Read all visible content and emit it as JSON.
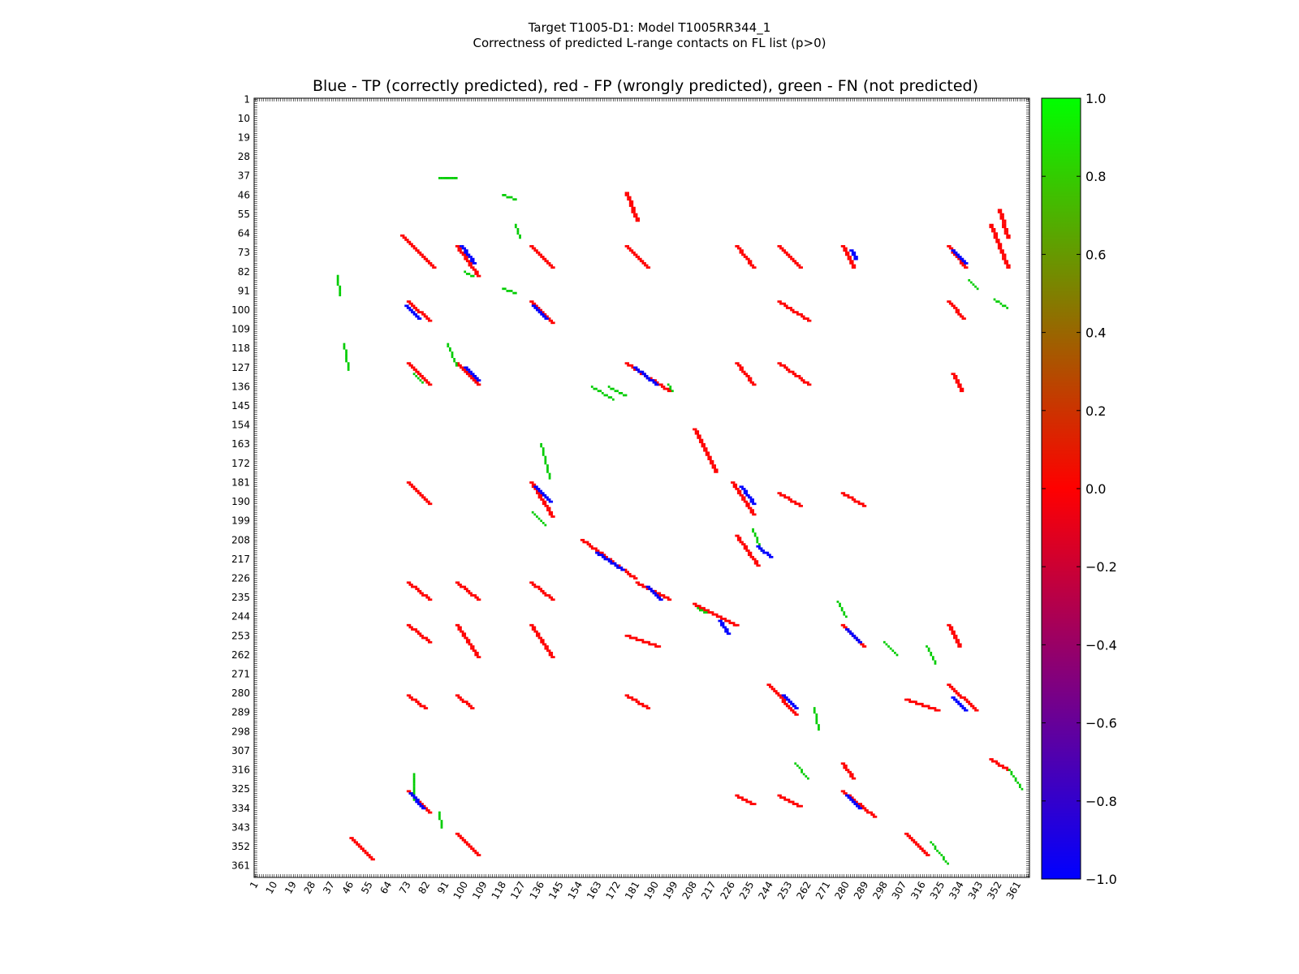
{
  "figure": {
    "suptitle_line1": "Target T1005-D1: Model T1005RR344_1",
    "suptitle_line2": "Correctness of predicted L-range contacts on FL list (p>0)"
  },
  "chart_data": {
    "type": "heatmap",
    "title": "Blue - TP (correctly predicted), red - FP (wrongly predicted), green - FN (not predicted)",
    "xlabel": "",
    "ylabel": "",
    "xlim": [
      1,
      366
    ],
    "ylim": [
      1,
      366
    ],
    "y_inverted": true,
    "grid": false,
    "tick_labels": [
      "1",
      "10",
      "19",
      "28",
      "37",
      "46",
      "55",
      "64",
      "73",
      "82",
      "91",
      "100",
      "109",
      "118",
      "127",
      "136",
      "145",
      "154",
      "163",
      "172",
      "181",
      "190",
      "199",
      "208",
      "217",
      "226",
      "235",
      "244",
      "253",
      "262",
      "271",
      "280",
      "289",
      "298",
      "307",
      "316",
      "325",
      "334",
      "343",
      "352",
      "361"
    ],
    "colorbar": {
      "min": -1.0,
      "max": 1.0,
      "ticks": [
        "1.0",
        "0.8",
        "0.6",
        "0.4",
        "0.2",
        "0.0",
        "−0.2",
        "−0.4",
        "−0.6",
        "−0.8",
        "−1.0"
      ],
      "stops": [
        "#0000ff",
        "#ff0000",
        "#00ff00"
      ]
    },
    "categories": [
      {
        "name": "TP",
        "value": -1,
        "color": "#0000ff"
      },
      {
        "name": "FP",
        "value": 0,
        "color": "#ff0000"
      },
      {
        "name": "FN",
        "value": 1,
        "color": "#00cc00"
      }
    ],
    "red_diagonal_segments": [
      [
        70,
        65,
        85,
        80
      ],
      [
        96,
        70,
        106,
        84
      ],
      [
        131,
        70,
        141,
        80
      ],
      [
        73,
        96,
        83,
        105
      ],
      [
        131,
        96,
        141,
        106
      ],
      [
        73,
        125,
        83,
        135
      ],
      [
        96,
        125,
        106,
        135
      ],
      [
        176,
        125,
        196,
        138
      ],
      [
        176,
        70,
        186,
        80
      ],
      [
        228,
        70,
        236,
        80
      ],
      [
        248,
        70,
        258,
        80
      ],
      [
        248,
        96,
        262,
        105
      ],
      [
        248,
        125,
        262,
        135
      ],
      [
        228,
        125,
        236,
        135
      ],
      [
        328,
        70,
        336,
        80
      ],
      [
        278,
        70,
        283,
        80
      ],
      [
        73,
        181,
        83,
        191
      ],
      [
        131,
        181,
        141,
        197
      ],
      [
        226,
        181,
        236,
        196
      ],
      [
        208,
        156,
        218,
        176
      ],
      [
        155,
        208,
        180,
        226
      ],
      [
        181,
        228,
        196,
        236
      ],
      [
        208,
        238,
        228,
        248
      ],
      [
        73,
        228,
        83,
        236
      ],
      [
        96,
        228,
        106,
        236
      ],
      [
        131,
        228,
        141,
        236
      ],
      [
        73,
        248,
        83,
        256
      ],
      [
        96,
        248,
        106,
        263
      ],
      [
        131,
        248,
        141,
        263
      ],
      [
        176,
        253,
        191,
        258
      ],
      [
        278,
        248,
        288,
        258
      ],
      [
        328,
        248,
        333,
        258
      ],
      [
        73,
        281,
        81,
        287
      ],
      [
        96,
        281,
        103,
        287
      ],
      [
        176,
        281,
        186,
        287
      ],
      [
        243,
        276,
        256,
        290
      ],
      [
        328,
        276,
        341,
        288
      ],
      [
        308,
        283,
        323,
        288
      ],
      [
        228,
        328,
        236,
        332
      ],
      [
        248,
        328,
        258,
        333
      ],
      [
        278,
        326,
        293,
        338
      ],
      [
        73,
        326,
        83,
        336
      ],
      [
        348,
        311,
        356,
        316
      ],
      [
        278,
        313,
        283,
        320
      ],
      [
        308,
        346,
        318,
        356
      ],
      [
        46,
        348,
        56,
        358
      ],
      [
        228,
        206,
        238,
        220
      ],
      [
        248,
        186,
        258,
        192
      ],
      [
        278,
        186,
        288,
        192
      ],
      [
        328,
        96,
        335,
        104
      ],
      [
        330,
        130,
        334,
        138
      ],
      [
        96,
        346,
        106,
        356
      ],
      [
        176,
        45,
        181,
        58
      ],
      [
        352,
        53,
        356,
        66
      ],
      [
        348,
        60,
        356,
        80
      ]
    ],
    "blue_diagonal_segments": [
      [
        72,
        98,
        78,
        104
      ],
      [
        98,
        70,
        104,
        78
      ],
      [
        132,
        98,
        138,
        104
      ],
      [
        100,
        127,
        106,
        133
      ],
      [
        180,
        127,
        190,
        135
      ],
      [
        230,
        183,
        236,
        191
      ],
      [
        133,
        183,
        140,
        190
      ],
      [
        186,
        230,
        192,
        236
      ],
      [
        280,
        250,
        286,
        256
      ],
      [
        250,
        281,
        256,
        287
      ],
      [
        330,
        282,
        336,
        288
      ],
      [
        280,
        328,
        286,
        334
      ],
      [
        74,
        327,
        80,
        334
      ],
      [
        330,
        72,
        336,
        78
      ],
      [
        282,
        72,
        284,
        76
      ],
      [
        162,
        214,
        174,
        222
      ],
      [
        220,
        246,
        224,
        252
      ],
      [
        238,
        211,
        244,
        216
      ]
    ],
    "green_segments": [
      [
        43,
        116,
        45,
        128
      ],
      [
        40,
        84,
        41,
        93
      ],
      [
        88,
        38,
        96,
        38
      ],
      [
        118,
        46,
        124,
        48
      ],
      [
        124,
        60,
        126,
        66
      ],
      [
        100,
        82,
        104,
        84
      ],
      [
        118,
        90,
        124,
        92
      ],
      [
        92,
        116,
        96,
        126
      ],
      [
        168,
        136,
        176,
        140
      ],
      [
        160,
        136,
        170,
        142
      ],
      [
        196,
        135,
        198,
        138
      ],
      [
        136,
        163,
        140,
        179
      ],
      [
        132,
        195,
        138,
        201
      ],
      [
        236,
        203,
        240,
        213
      ],
      [
        210,
        240,
        214,
        242
      ],
      [
        265,
        287,
        267,
        297
      ],
      [
        298,
        256,
        304,
        262
      ],
      [
        318,
        258,
        322,
        266
      ],
      [
        320,
        350,
        328,
        360
      ],
      [
        357,
        316,
        363,
        325
      ],
      [
        338,
        86,
        342,
        90
      ],
      [
        350,
        95,
        356,
        99
      ],
      [
        76,
        318,
        76,
        330
      ],
      [
        88,
        336,
        89,
        343
      ],
      [
        256,
        313,
        262,
        320
      ],
      [
        276,
        237,
        280,
        244
      ],
      [
        76,
        130,
        80,
        134
      ]
    ]
  }
}
